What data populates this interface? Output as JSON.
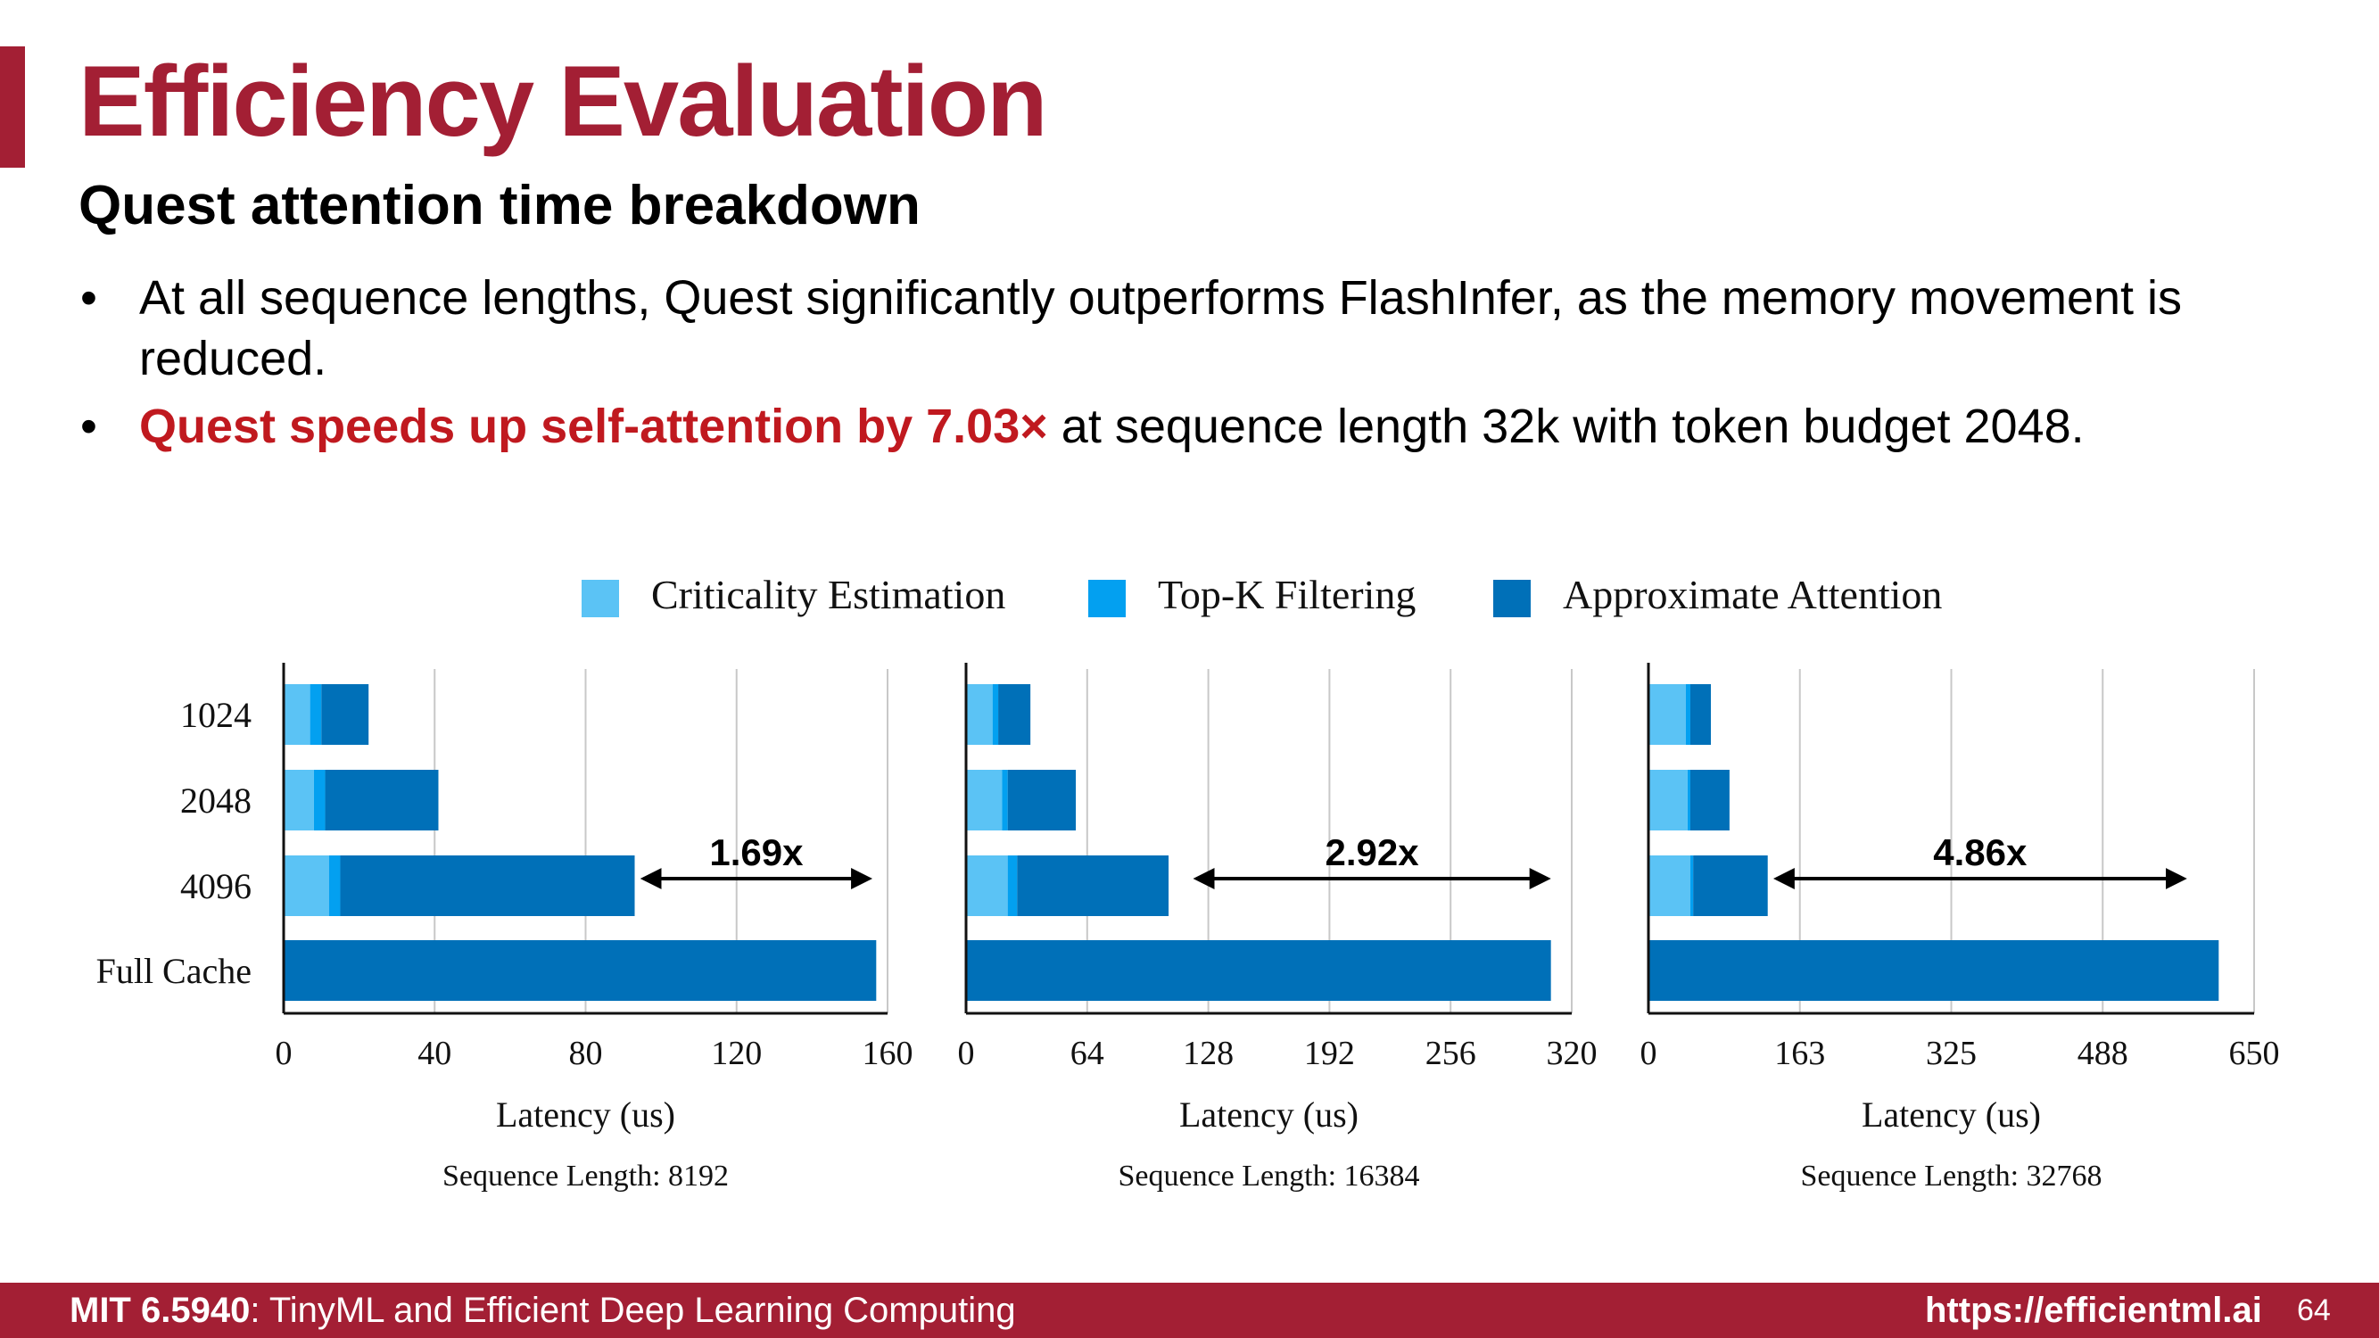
{
  "slide": {
    "title": "Efficiency Evaluation",
    "subtitle": "Quest attention time breakdown",
    "bullets": [
      {
        "text": "At all sequence lengths, Quest significantly outperforms FlashInfer, as the memory movement is reduced."
      },
      {
        "highlight": "Quest speeds up self-attention by 7.03×",
        "rest": " at sequence length 32k with token budget 2048."
      }
    ]
  },
  "footer": {
    "course": "MIT 6.5940",
    "course_title": ": TinyML and Efficient Deep Learning Computing",
    "url": "https://efficientml.ai",
    "page": "64"
  },
  "legend": [
    {
      "label": "Criticality Estimation",
      "color": "#5bc3f5"
    },
    {
      "label": "Top-K Filtering",
      "color": "#03a0f0"
    },
    {
      "label": "Approximate Attention",
      "color": "#0070b8"
    }
  ],
  "chart_data": [
    {
      "type": "bar",
      "orientation": "horizontal",
      "stacked": true,
      "categories": [
        "1024",
        "2048",
        "4096",
        "Full Cache"
      ],
      "series": [
        {
          "name": "Criticality Estimation",
          "values": [
            7,
            8,
            12,
            0
          ]
        },
        {
          "name": "Top-K Filtering",
          "values": [
            3,
            3,
            3,
            0
          ]
        },
        {
          "name": "Approximate Attention",
          "values": [
            12.5,
            30,
            78,
            157
          ]
        }
      ],
      "xlabel": "Latency (us)",
      "caption": "Sequence Length: 8192",
      "xlim": [
        0,
        160
      ],
      "ticks": [
        "0",
        "40",
        "80",
        "120",
        "160"
      ],
      "grid": true,
      "annotation": {
        "text": "1.69x",
        "from": 94,
        "to": 156
      }
    },
    {
      "type": "bar",
      "orientation": "horizontal",
      "stacked": true,
      "categories": [
        "1024",
        "2048",
        "4096",
        "Full Cache"
      ],
      "series": [
        {
          "name": "Criticality Estimation",
          "values": [
            14,
            19,
            22,
            0
          ]
        },
        {
          "name": "Top-K Filtering",
          "values": [
            3,
            3,
            5,
            0
          ]
        },
        {
          "name": "Approximate Attention",
          "values": [
            17,
            36,
            80,
            309
          ]
        }
      ],
      "xlabel": "Latency (us)",
      "caption": "Sequence Length: 16384",
      "xlim": [
        0,
        320
      ],
      "ticks": [
        "0",
        "64",
        "128",
        "192",
        "256",
        "320"
      ],
      "grid": true,
      "annotation": {
        "text": "2.92x",
        "from": 119,
        "to": 309
      }
    },
    {
      "type": "bar",
      "orientation": "horizontal",
      "stacked": true,
      "categories": [
        "1024",
        "2048",
        "4096",
        "Full Cache"
      ],
      "series": [
        {
          "name": "Criticality Estimation",
          "values": [
            40,
            42,
            45,
            0
          ]
        },
        {
          "name": "Top-K Filtering",
          "values": [
            5,
            3,
            3,
            0
          ]
        },
        {
          "name": "Approximate Attention",
          "values": [
            22,
            42,
            80,
            612
          ]
        }
      ],
      "xlabel": "Latency (us)",
      "caption": "Sequence Length: 32768",
      "xlim": [
        0,
        650
      ],
      "ticks": [
        "0",
        "163",
        "325",
        "488",
        "650"
      ],
      "grid": true,
      "annotation": {
        "text": "4.86x",
        "from": 132,
        "to": 578
      }
    }
  ]
}
